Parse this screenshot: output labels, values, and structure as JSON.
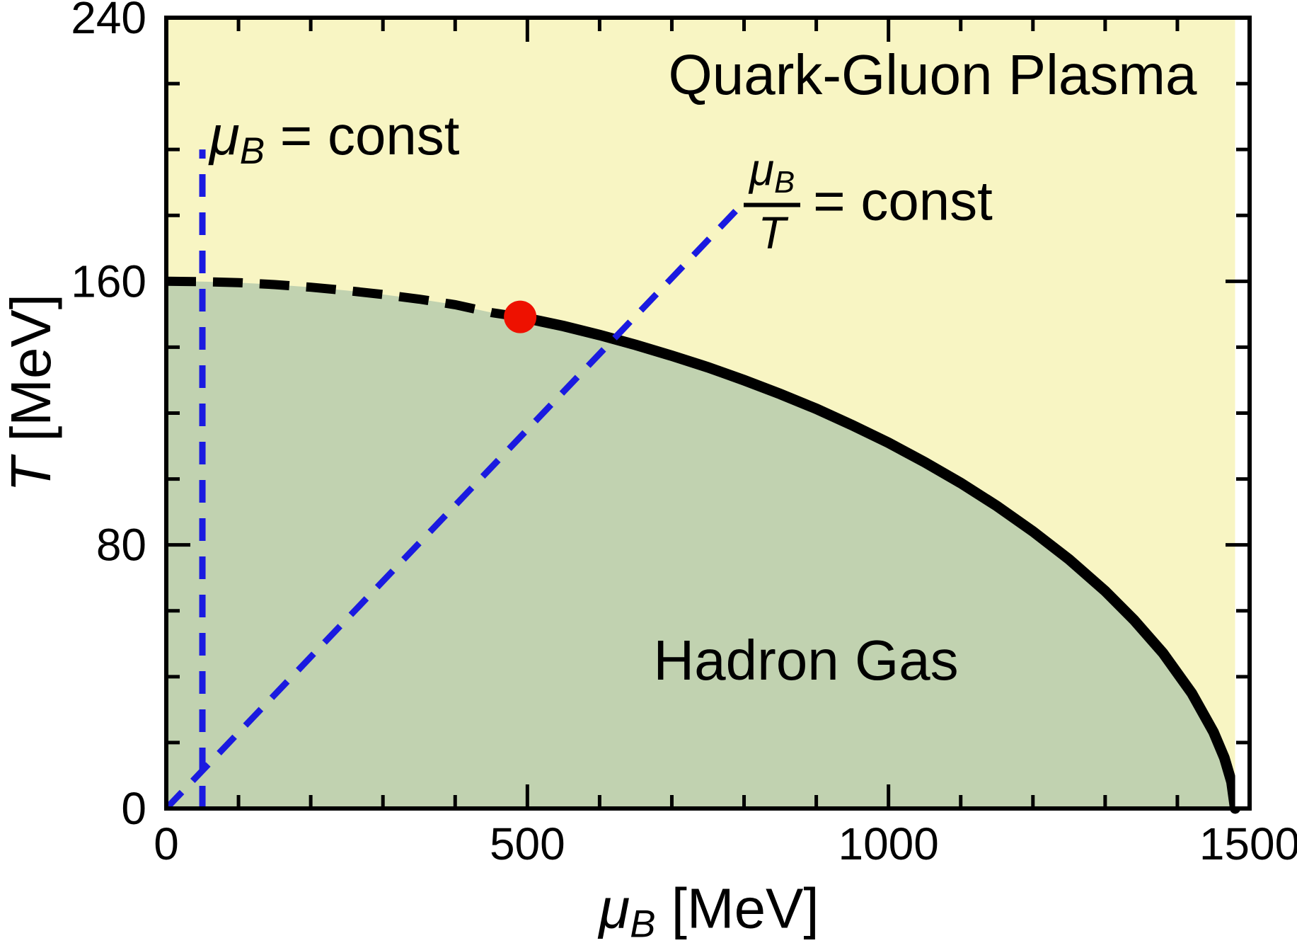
{
  "colors": {
    "qgp_yellow": "#f8f5c3",
    "hadron_green": "#c1d2b0",
    "guide_blue": "#1a1ae0",
    "critical_red": "#ee1100",
    "ink": "#000000",
    "background": "#ffffff"
  },
  "labels": {
    "qgp_region": "Quark-Gluon Plasma",
    "hadron_region": "Hadron Gas",
    "mu_const": {
      "symbol": "μ",
      "sub": "B",
      "eq": " = const"
    },
    "ratio": {
      "num_symbol": "μ",
      "num_sub": "B",
      "den": "T",
      "eq": "= const"
    },
    "x_axis": {
      "symbol": "μ",
      "sub": "B",
      "units": " [MeV]"
    },
    "y_axis": {
      "symbol": "T",
      "units": " [MeV]"
    }
  },
  "chart_data": {
    "type": "area",
    "title": "",
    "xlabel": "μ_B [MeV]",
    "ylabel": "T [MeV]",
    "xlim": [
      0,
      1500
    ],
    "ylim": [
      0,
      240
    ],
    "grid": false,
    "x_major_ticks": [
      0,
      500,
      1000,
      1500
    ],
    "x_minor_tick_step": 100,
    "y_major_ticks": [
      0,
      80,
      160,
      240
    ],
    "y_minor_tick_step": 20,
    "regions": [
      {
        "name": "Quark-Gluon Plasma",
        "fill": "#f8f5c3",
        "position": "above phase boundary"
      },
      {
        "name": "Hadron Gas",
        "fill": "#c1d2b0",
        "position": "below phase boundary"
      }
    ],
    "phase_boundary": {
      "Tc_at_mu0_MeV": 160,
      "mu_max_MeV": 1480,
      "crossover_dashed": [
        [
          0,
          160
        ],
        [
          50,
          159.9
        ],
        [
          100,
          159.6
        ],
        [
          150,
          159.0
        ],
        [
          200,
          158.2
        ],
        [
          250,
          157.2
        ],
        [
          300,
          156.0
        ],
        [
          350,
          154.6
        ],
        [
          400,
          152.9
        ],
        [
          450,
          150.5
        ],
        [
          490,
          149.2
        ]
      ],
      "first_order_solid": [
        [
          490,
          149.2
        ],
        [
          550,
          146.4
        ],
        [
          600,
          143.7
        ],
        [
          650,
          140.7
        ],
        [
          700,
          137.4
        ],
        [
          750,
          133.9
        ],
        [
          800,
          130.0
        ],
        [
          850,
          125.8
        ],
        [
          900,
          121.3
        ],
        [
          950,
          116.3
        ],
        [
          1000,
          111.0
        ],
        [
          1050,
          105.1
        ],
        [
          1100,
          98.8
        ],
        [
          1150,
          91.8
        ],
        [
          1200,
          84.1
        ],
        [
          1250,
          75.6
        ],
        [
          1300,
          66.0
        ],
        [
          1340,
          57.2
        ],
        [
          1380,
          47.2
        ],
        [
          1420,
          35.0
        ],
        [
          1450,
          23.2
        ],
        [
          1465,
          15.4
        ],
        [
          1475,
          8.0
        ],
        [
          1480,
          0
        ]
      ]
    },
    "critical_point": {
      "mu_B": 490,
      "T": 149.2,
      "color": "#ee1100"
    },
    "guide_lines": [
      {
        "name": "mu_B = const",
        "style": "dashed",
        "color": "#1a1ae0",
        "type": "vertical",
        "mu_B": 50,
        "T_range": [
          0,
          200
        ]
      },
      {
        "name": "mu_B / T = const",
        "style": "dashed",
        "color": "#1a1ae0",
        "type": "ray",
        "from": [
          0,
          0
        ],
        "to": [
          800,
          184
        ]
      }
    ]
  }
}
